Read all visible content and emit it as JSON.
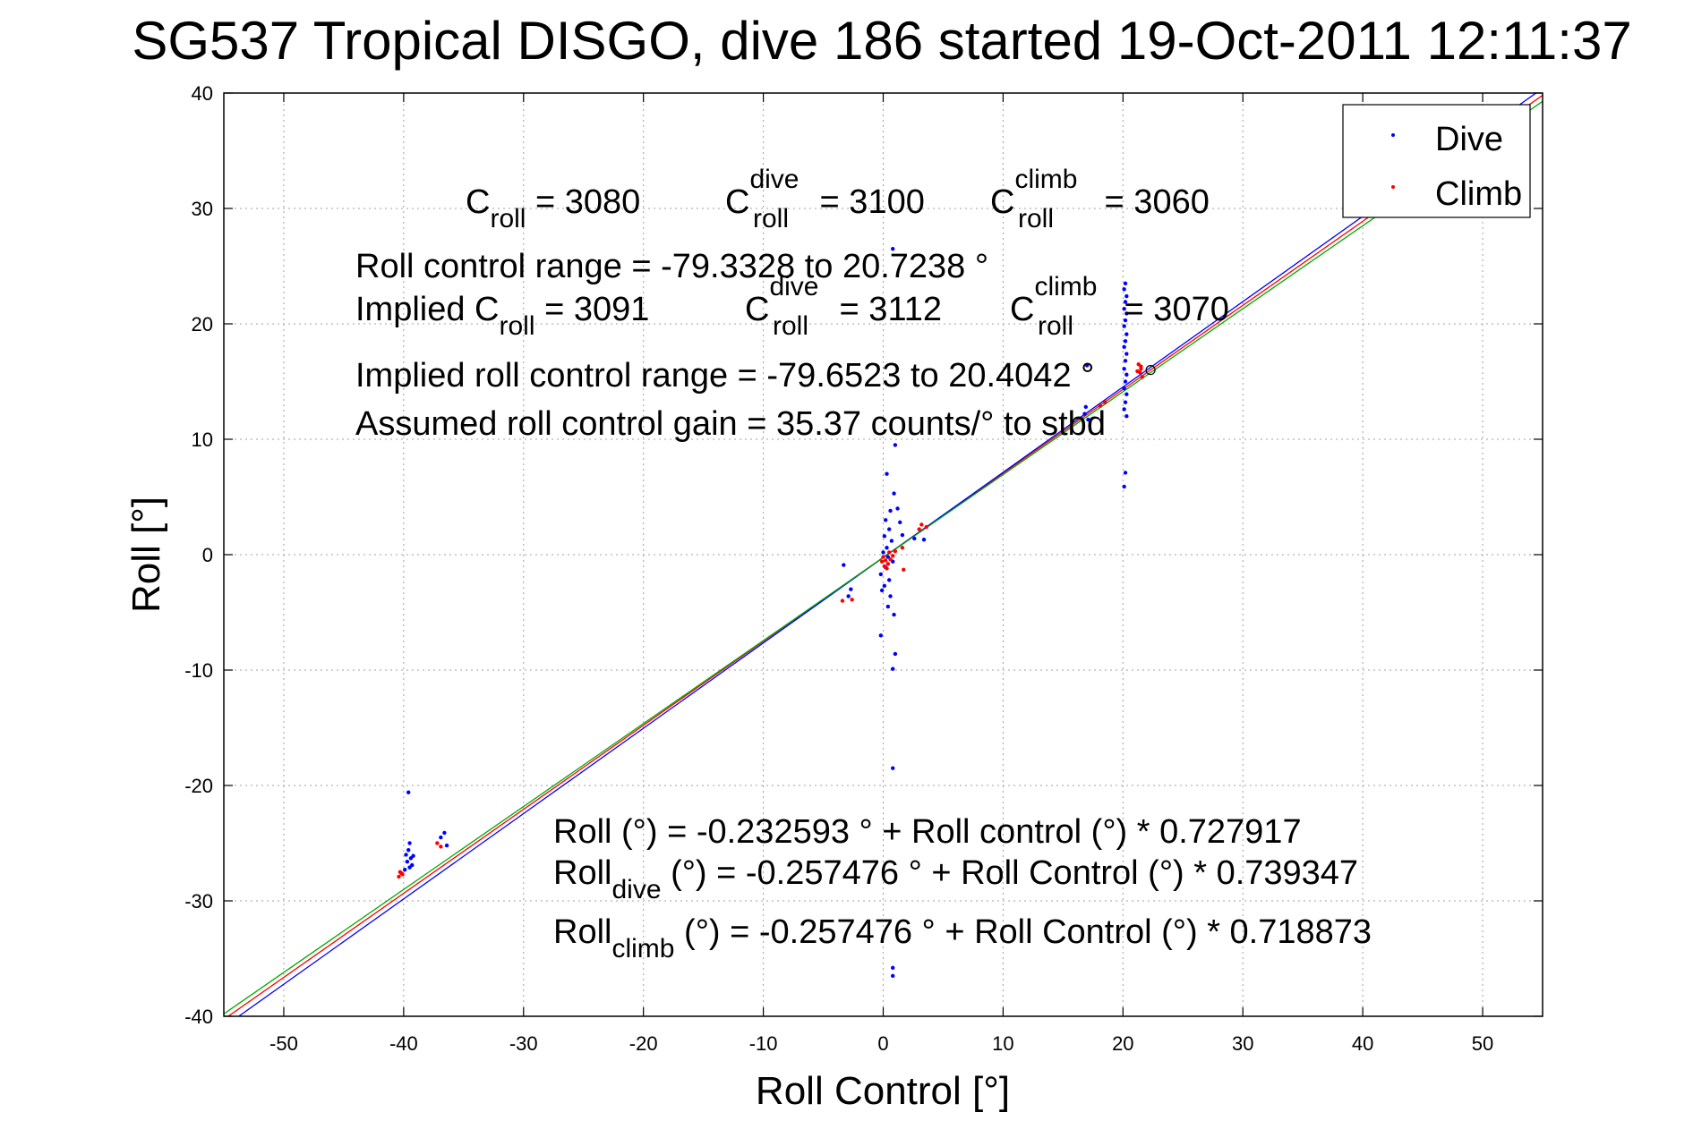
{
  "chart_data": {
    "type": "scatter",
    "title": "SG537 Tropical DISGO, dive 186 started 19-Oct-2011 12:11:37",
    "xlabel": "Roll Control [°]",
    "ylabel": "Roll [°]",
    "xlim": [
      -55,
      55
    ],
    "ylim": [
      -40,
      40
    ],
    "xticks": [
      -50,
      -40,
      -30,
      -20,
      -10,
      0,
      10,
      20,
      30,
      40,
      50
    ],
    "yticks": [
      -40,
      -30,
      -20,
      -10,
      0,
      10,
      20,
      30,
      40
    ],
    "grid": true,
    "legend_position": "top-right",
    "series": [
      {
        "name": "Dive",
        "color": "#0000ff",
        "marker": "dot",
        "points": [
          [
            -39.6,
            -20.6
          ],
          [
            -39.5,
            -25.0
          ],
          [
            -39.6,
            -25.6
          ],
          [
            -39.8,
            -26.0
          ],
          [
            -39.4,
            -26.3
          ],
          [
            -39.7,
            -26.6
          ],
          [
            -39.3,
            -26.9
          ],
          [
            -39.5,
            -27.1
          ],
          [
            -39.9,
            -27.3
          ],
          [
            -39.2,
            -26.1
          ],
          [
            -36.6,
            -24.1
          ],
          [
            -36.9,
            -24.5
          ],
          [
            -36.4,
            -25.2
          ],
          [
            -3.3,
            -0.9
          ],
          [
            -2.7,
            -3.0
          ],
          [
            -2.9,
            -3.6
          ],
          [
            0.3,
            7.0
          ],
          [
            0.9,
            5.3
          ],
          [
            0.6,
            3.8
          ],
          [
            0.2,
            3.0
          ],
          [
            0.5,
            2.2
          ],
          [
            0.1,
            1.6
          ],
          [
            0.7,
            1.2
          ],
          [
            0.3,
            0.6
          ],
          [
            0.0,
            0.2
          ],
          [
            0.4,
            -0.2
          ],
          [
            0.8,
            -0.6
          ],
          [
            0.2,
            -1.1
          ],
          [
            -0.2,
            -1.7
          ],
          [
            0.5,
            -2.2
          ],
          [
            0.1,
            -2.7
          ],
          [
            -0.1,
            -3.1
          ],
          [
            0.6,
            -3.6
          ],
          [
            0.4,
            -4.5
          ],
          [
            0.9,
            -5.2
          ],
          [
            -0.2,
            -7.0
          ],
          [
            1.0,
            -8.6
          ],
          [
            0.8,
            -9.9
          ],
          [
            0.8,
            -18.5
          ],
          [
            0.8,
            -35.8
          ],
          [
            0.8,
            -36.5
          ],
          [
            0.8,
            26.5
          ],
          [
            1.0,
            9.5
          ],
          [
            1.2,
            4.0
          ],
          [
            1.4,
            2.8
          ],
          [
            1.6,
            1.7
          ],
          [
            2.6,
            1.4
          ],
          [
            3.4,
            1.3
          ],
          [
            20.2,
            23.5
          ],
          [
            20.1,
            23.0
          ],
          [
            20.3,
            22.4
          ],
          [
            20.2,
            21.9
          ],
          [
            20.1,
            21.3
          ],
          [
            20.3,
            20.9
          ],
          [
            20.2,
            20.3
          ],
          [
            20.1,
            19.8
          ],
          [
            20.3,
            19.1
          ],
          [
            20.2,
            18.5
          ],
          [
            20.1,
            18.0
          ],
          [
            20.3,
            17.4
          ],
          [
            20.2,
            16.8
          ],
          [
            20.1,
            16.1
          ],
          [
            20.3,
            15.6
          ],
          [
            20.2,
            15.0
          ],
          [
            20.1,
            14.4
          ],
          [
            20.3,
            13.9
          ],
          [
            20.2,
            13.2
          ],
          [
            20.1,
            12.6
          ],
          [
            20.3,
            12.0
          ],
          [
            20.2,
            7.1
          ],
          [
            20.1,
            5.9
          ],
          [
            17.0,
            16.4
          ],
          [
            16.9,
            12.8
          ],
          [
            16.8,
            12.2
          ],
          [
            17.1,
            11.7
          ]
        ]
      },
      {
        "name": "Climb",
        "color": "#ff0000",
        "marker": "dot",
        "points": [
          [
            -40.3,
            -27.5
          ],
          [
            -40.1,
            -27.7
          ],
          [
            -40.4,
            -27.9
          ],
          [
            -40.2,
            -27.6
          ],
          [
            -37.2,
            -25.0
          ],
          [
            -36.9,
            -25.3
          ],
          [
            -3.4,
            -4.0
          ],
          [
            -2.6,
            -3.9
          ],
          [
            0.0,
            -0.2
          ],
          [
            0.2,
            -0.5
          ],
          [
            0.4,
            -0.8
          ],
          [
            0.1,
            -1.0
          ],
          [
            -0.1,
            -0.6
          ],
          [
            0.5,
            0.2
          ],
          [
            0.3,
            -1.2
          ],
          [
            0.6,
            -0.4
          ],
          [
            0.8,
            -0.1
          ],
          [
            1.0,
            0.3
          ],
          [
            1.6,
            0.6
          ],
          [
            1.7,
            -1.3
          ],
          [
            3.2,
            2.6
          ],
          [
            3.6,
            2.4
          ],
          [
            3.0,
            2.2
          ],
          [
            21.3,
            16.5
          ],
          [
            21.5,
            16.1
          ],
          [
            21.4,
            15.8
          ],
          [
            21.6,
            15.4
          ],
          [
            21.2,
            15.9
          ],
          [
            21.5,
            16.3
          ],
          [
            18.1,
            12.9
          ],
          [
            18.5,
            13.2
          ]
        ]
      }
    ],
    "fit_lines": [
      {
        "color": "#ff0000",
        "intercept": -0.232593,
        "slope": 0.727917
      },
      {
        "color": "#0000ff",
        "intercept": -0.257476,
        "slope": 0.739347
      },
      {
        "color": "#00aa00",
        "intercept": -0.257476,
        "slope": 0.718873
      }
    ],
    "marked_point": [
      22.3,
      16.0
    ]
  },
  "annotations": {
    "c_roll": {
      "main": "C",
      "sub": "roll",
      "value": " = 3080"
    },
    "c_roll_dive": {
      "main": "C",
      "sup": "dive",
      "sub": "roll",
      "value": " = 3100"
    },
    "c_roll_climb": {
      "main": "C",
      "sup": "climb",
      "sub": "roll",
      "value": " = 3060"
    },
    "range": "Roll control range = -79.3328 to 20.7238 °",
    "implied_c_roll": {
      "main": "Implied C",
      "sub": "roll",
      "value": " = 3091"
    },
    "implied_c_roll_dive": {
      "main": "C",
      "sup": "dive",
      "sub": "roll",
      "value": " = 3112"
    },
    "implied_c_roll_climb": {
      "main": "C",
      "sup": "climb",
      "sub": "roll",
      "value": " = 3070"
    },
    "implied_range": "Implied roll control range = -79.6523 to 20.4042 °",
    "gain": "Assumed roll control gain = 35.37 counts/° to stbd",
    "fit_all": "Roll (°) = -0.232593 ° + Roll control (°) * 0.727917",
    "fit_dive": {
      "main": "Roll",
      "sub": "dive",
      "value": " (°) = -0.257476 ° + Roll Control (°) * 0.739347"
    },
    "fit_climb": {
      "main": "Roll",
      "sub": "climb",
      "value": " (°) = -0.257476 ° + Roll Control (°) * 0.718873"
    }
  }
}
